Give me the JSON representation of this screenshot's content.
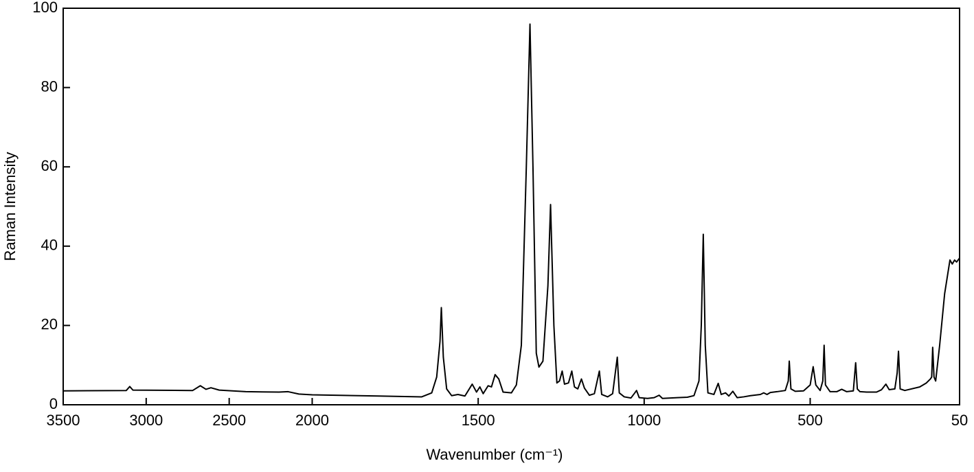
{
  "chart_data": {
    "type": "line",
    "xlabel": "Wavenumber (cm⁻¹)",
    "ylabel": "Raman Intensity",
    "xlim": [
      3500,
      50
    ],
    "ylim": [
      0,
      100
    ],
    "x_compressed_above": 2000,
    "xticks": [
      3500,
      3000,
      2500,
      2000,
      1500,
      1000,
      500,
      50
    ],
    "yticks": [
      0,
      20,
      40,
      60,
      80,
      100
    ],
    "color": "#000000",
    "x": [
      3500,
      3120,
      3099,
      3080,
      2720,
      2674,
      2640,
      2610,
      2560,
      2400,
      2200,
      2145,
      2080,
      2000,
      1800,
      1670,
      1640,
      1625,
      1615,
      1611,
      1605,
      1595,
      1580,
      1561,
      1540,
      1518,
      1505,
      1495,
      1485,
      1470,
      1460,
      1449,
      1438,
      1425,
      1400,
      1385,
      1370,
      1355,
      1344,
      1335,
      1325,
      1317,
      1305,
      1290,
      1282,
      1272,
      1263,
      1255,
      1247,
      1240,
      1228,
      1218,
      1210,
      1200,
      1189,
      1180,
      1165,
      1150,
      1135,
      1128,
      1110,
      1095,
      1081,
      1075,
      1060,
      1040,
      1030,
      1023,
      1015,
      990,
      970,
      955,
      945,
      900,
      870,
      850,
      835,
      828,
      822,
      816,
      808,
      790,
      777,
      768,
      755,
      745,
      733,
      720,
      700,
      680,
      650,
      640,
      630,
      620,
      600,
      575,
      566,
      563,
      558,
      545,
      520,
      500,
      491,
      483,
      470,
      462,
      458,
      454,
      440,
      420,
      405,
      390,
      370,
      363,
      358,
      350,
      330,
      300,
      285,
      272,
      262,
      245,
      238,
      234,
      229,
      215,
      170,
      150,
      138,
      134,
      131,
      127,
      122,
      110,
      95,
      79,
      72,
      65,
      59,
      50
    ],
    "values": [
      3.5,
      3.6,
      4.6,
      3.7,
      3.6,
      4.8,
      3.9,
      4.3,
      3.7,
      3.3,
      3.2,
      3.3,
      2.7,
      2.5,
      2.2,
      2.0,
      3,
      7,
      16,
      24.5,
      12,
      4,
      2.3,
      2.6,
      2.2,
      5.2,
      3.2,
      4.5,
      2.8,
      4.8,
      4.5,
      7.6,
      6.5,
      3.2,
      3.0,
      5,
      15,
      60,
      96,
      60,
      13,
      9.5,
      11,
      30,
      50.5,
      20,
      5.5,
      6,
      8.5,
      5.2,
      5.5,
      8.5,
      4.5,
      4,
      6.5,
      4.2,
      2.4,
      2.8,
      8.5,
      2.6,
      2.0,
      2.8,
      12,
      3,
      2,
      1.7,
      2.8,
      3.6,
      1.8,
      1.6,
      1.8,
      2.4,
      1.6,
      1.8,
      1.9,
      2.3,
      6,
      20,
      43,
      15,
      3,
      2.6,
      5.4,
      2.6,
      3,
      2.2,
      3.4,
      1.8,
      2,
      2.3,
      2.6,
      3,
      2.6,
      3.1,
      3.3,
      3.6,
      6,
      11,
      4,
      3.4,
      3.5,
      5,
      9.6,
      5,
      3.6,
      6,
      15,
      5,
      3.3,
      3.3,
      3.9,
      3.3,
      3.5,
      10.6,
      4,
      3.3,
      3.2,
      3.2,
      3.8,
      5.2,
      3.8,
      4,
      8,
      13.5,
      4,
      3.6,
      4.5,
      5.5,
      6.5,
      7,
      14.5,
      7,
      6,
      15,
      28,
      36.5,
      35.5,
      36.5,
      36,
      37
    ]
  }
}
